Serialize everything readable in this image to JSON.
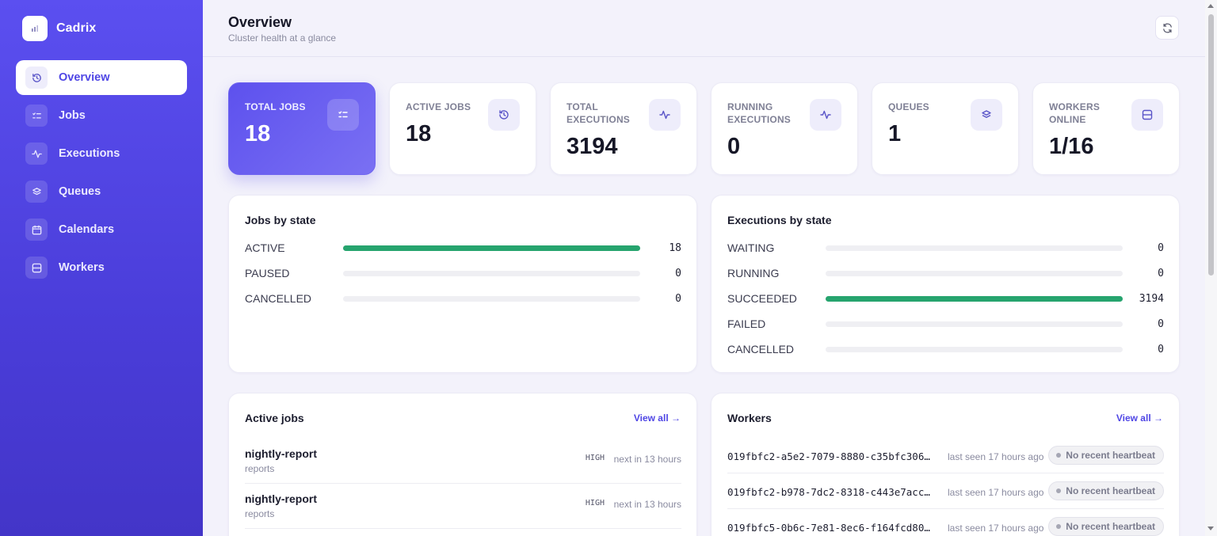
{
  "brand": {
    "name": "Cadrix"
  },
  "sidebar": {
    "items": [
      {
        "label": "Overview",
        "icon": "history-icon",
        "active": true
      },
      {
        "label": "Jobs",
        "icon": "list-icon"
      },
      {
        "label": "Executions",
        "icon": "activity-icon"
      },
      {
        "label": "Queues",
        "icon": "layers-icon"
      },
      {
        "label": "Calendars",
        "icon": "calendar-icon"
      },
      {
        "label": "Workers",
        "icon": "server-icon"
      }
    ]
  },
  "header": {
    "title": "Overview",
    "subtitle": "Cluster health at a glance",
    "refresh_icon": "refresh-icon"
  },
  "stats": [
    {
      "label": "TOTAL JOBS",
      "value": "18",
      "icon": "list-icon"
    },
    {
      "label": "ACTIVE JOBS",
      "value": "18",
      "icon": "history-icon"
    },
    {
      "label": "TOTAL EXECUTIONS",
      "value": "3194",
      "icon": "activity-icon"
    },
    {
      "label": "RUNNING EXECUTIONS",
      "value": "0",
      "icon": "activity-icon"
    },
    {
      "label": "QUEUES",
      "value": "1",
      "icon": "layers-icon"
    },
    {
      "label": "WORKERS ONLINE",
      "value": "1/16",
      "icon": "server-icon"
    }
  ],
  "jobs_by_state": {
    "title": "Jobs by state",
    "rows": [
      {
        "label": "ACTIVE",
        "count": "18",
        "fraction": 1.0
      },
      {
        "label": "PAUSED",
        "count": "0",
        "fraction": 0
      },
      {
        "label": "CANCELLED",
        "count": "0",
        "fraction": 0
      }
    ]
  },
  "executions_by_state": {
    "title": "Executions by state",
    "rows": [
      {
        "label": "WAITING",
        "count": "0",
        "fraction": 0
      },
      {
        "label": "RUNNING",
        "count": "0",
        "fraction": 0
      },
      {
        "label": "SUCCEEDED",
        "count": "3194",
        "fraction": 1.0
      },
      {
        "label": "FAILED",
        "count": "0",
        "fraction": 0
      },
      {
        "label": "CANCELLED",
        "count": "0",
        "fraction": 0
      }
    ]
  },
  "active_jobs": {
    "title": "Active jobs",
    "view_all": "View all",
    "rows": [
      {
        "name": "nightly-report",
        "queue": "reports",
        "priority": "HIGH",
        "next": "next in 13 hours"
      },
      {
        "name": "nightly-report",
        "queue": "reports",
        "priority": "HIGH",
        "next": "next in 13 hours"
      }
    ]
  },
  "workers": {
    "title": "Workers",
    "view_all": "View all",
    "rows": [
      {
        "id": "019fbfc2-a5e2-7079-8880-c35bfc306…",
        "seen": "last seen 17 hours ago",
        "status": "No recent heartbeat"
      },
      {
        "id": "019fbfc2-b978-7dc2-8318-c443e7acc…",
        "seen": "last seen 17 hours ago",
        "status": "No recent heartbeat"
      },
      {
        "id": "019fbfc5-0b6c-7e81-8ec6-f164fcd80…",
        "seen": "last seen 17 hours ago",
        "status": "No recent heartbeat"
      }
    ]
  },
  "colors": {
    "accent": "#4f46e5",
    "sidebar": "#5b4ff0",
    "success_bar": "#26a46e"
  }
}
